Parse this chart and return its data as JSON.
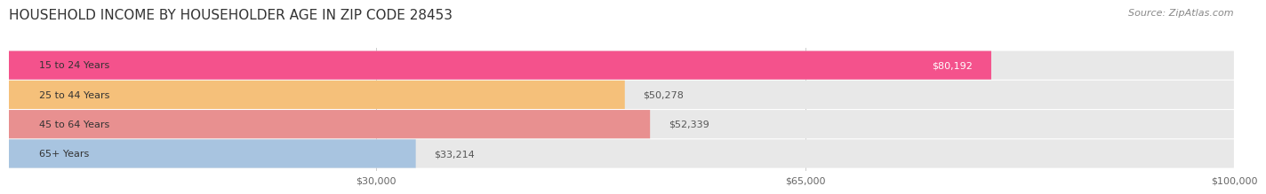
{
  "title": "HOUSEHOLD INCOME BY HOUSEHOLDER AGE IN ZIP CODE 28453",
  "source": "Source: ZipAtlas.com",
  "categories": [
    "15 to 24 Years",
    "25 to 44 Years",
    "45 to 64 Years",
    "65+ Years"
  ],
  "values": [
    80192,
    50278,
    52339,
    33214
  ],
  "bar_colors": [
    "#f4528c",
    "#f5c07a",
    "#e89090",
    "#a8c4e0"
  ],
  "bar_bg_color": "#e8e8e8",
  "background_color": "#ffffff",
  "label_colors": [
    "#ffffff",
    "#555555",
    "#555555",
    "#555555"
  ],
  "xlim": [
    0,
    100000
  ],
  "xticks": [
    30000,
    65000,
    100000
  ],
  "xticklabels": [
    "$30,000",
    "$65,000",
    "$100,000"
  ],
  "title_fontsize": 11,
  "source_fontsize": 8,
  "bar_label_fontsize": 8,
  "tick_fontsize": 8,
  "category_fontsize": 8
}
